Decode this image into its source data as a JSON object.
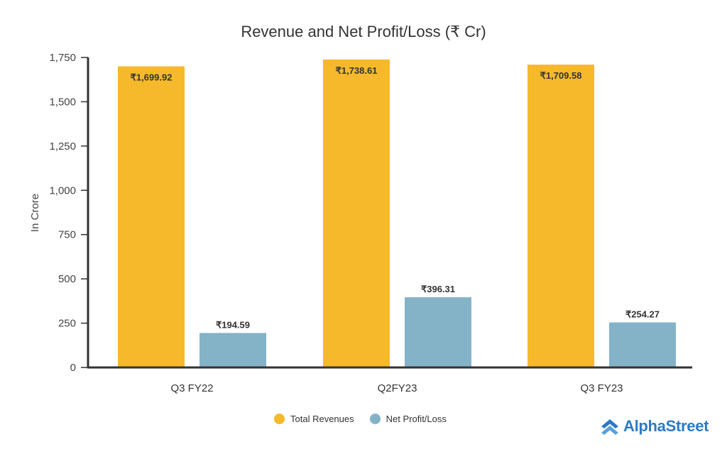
{
  "chart_data": {
    "type": "bar",
    "title": "Revenue and Net Profit/Loss (₹ Cr)",
    "xlabel": "",
    "ylabel": "In Crore",
    "ylim": [
      0,
      1750
    ],
    "yticks": [
      0,
      250,
      500,
      750,
      1000,
      1250,
      1500,
      1750
    ],
    "ytick_labels": [
      "0",
      "250",
      "500",
      "750",
      "1,000",
      "1,250",
      "1,500",
      "1,750"
    ],
    "categories": [
      "Q3 FY22",
      "Q2FY23",
      "Q3 FY23"
    ],
    "series": [
      {
        "name": "Total Revenues",
        "color": "#f6b92b",
        "values": [
          1699.92,
          1738.61,
          1709.58
        ],
        "labels": [
          "₹1,699.92",
          "₹1,738.61",
          "₹1,709.58"
        ],
        "label_position": "inside-top"
      },
      {
        "name": "Net Profit/Loss",
        "color": "#84b3c8",
        "values": [
          194.59,
          396.31,
          254.27
        ],
        "labels": [
          "₹194.59",
          "₹396.31",
          "₹254.27"
        ],
        "label_position": "above"
      }
    ],
    "legend_position": "bottom",
    "grid": false
  },
  "legend": {
    "items": [
      {
        "label": "Total Revenues",
        "color": "#f6b92b"
      },
      {
        "label": "Net Profit/Loss",
        "color": "#84b3c8"
      }
    ]
  },
  "brand": {
    "name": "AlphaStreet",
    "color": "#2b7bc4"
  }
}
